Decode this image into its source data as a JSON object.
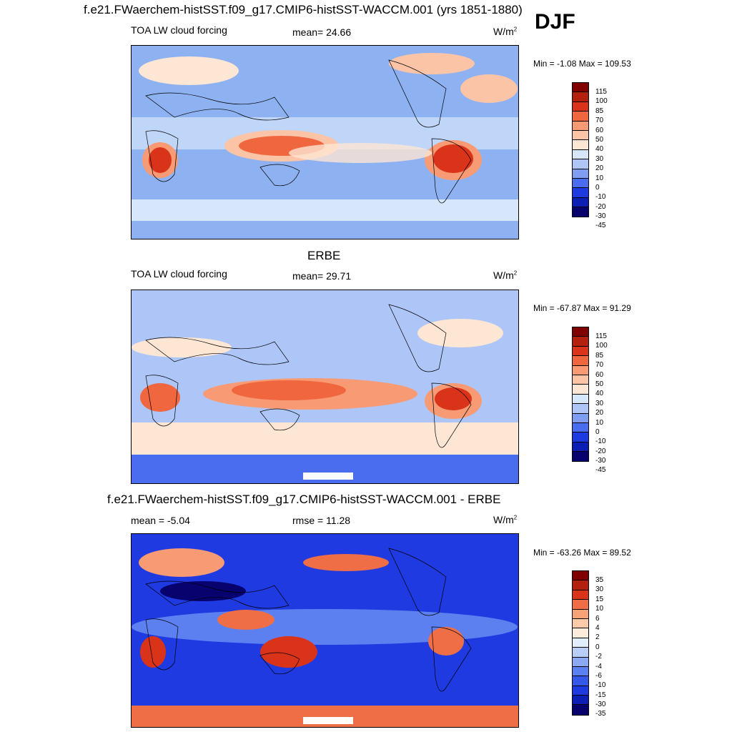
{
  "header": {
    "title": "f.e21.FWaerchem-histSST.f09_g17.CMIP6-histSST-WACCM.001 (yrs 1851-1880)",
    "season": "DJF"
  },
  "colors": {
    "main": [
      "#08026f",
      "#0b1fb5",
      "#1e3ae0",
      "#4a6df0",
      "#7f9ef2",
      "#aec6f7",
      "#d6e6fb",
      "#fde6d3",
      "#fcc4a7",
      "#f89a74",
      "#f0663f",
      "#d9341a",
      "#b3200e",
      "#800000"
    ],
    "diff": [
      "#08026f",
      "#0b1fb5",
      "#1e3ae0",
      "#3558ea",
      "#5d80f0",
      "#8ba9f3",
      "#b8cdf7",
      "#e3eefc",
      "#fdebdc",
      "#fccaa9",
      "#f8a277",
      "#f06e45",
      "#d9341a",
      "#b3200e",
      "#800000"
    ]
  },
  "panels": [
    {
      "title": "",
      "left_label": "TOA LW cloud forcing",
      "center_label": "mean=  24.66",
      "units": "W/m",
      "units_sup": "2",
      "minmax": "Min =  -1.08 Max = 109.53",
      "levels": [
        "115",
        "100",
        "85",
        "70",
        "60",
        "50",
        "40",
        "30",
        "20",
        "10",
        "0",
        "-10",
        "-20",
        "-30",
        "-45"
      ]
    },
    {
      "title": "ERBE",
      "left_label": "TOA LW cloud forcing",
      "center_label": "mean=  29.71",
      "units": "W/m",
      "units_sup": "2",
      "minmax": "Min = -67.87 Max =  91.29",
      "levels": [
        "115",
        "100",
        "85",
        "70",
        "60",
        "50",
        "40",
        "30",
        "20",
        "10",
        "0",
        "-10",
        "-20",
        "-30",
        "-45"
      ]
    },
    {
      "title": "f.e21.FWaerchem-histSST.f09_g17.CMIP6-histSST-WACCM.001 - ERBE",
      "left_label": "mean =  -5.04",
      "center_label": "rmse =  11.28",
      "units": "W/m",
      "units_sup": "2",
      "minmax": "Min = -63.26 Max =  89.52",
      "levels": [
        "35",
        "30",
        "15",
        "10",
        "6",
        "4",
        "2",
        "0",
        "-2",
        "-4",
        "-6",
        "-10",
        "-15",
        "-30",
        "-35"
      ]
    }
  ],
  "chart_data": [
    {
      "type": "heatmap",
      "title": "f.e21.FWaerchem-histSST.f09_g17.CMIP6-histSST-WACCM.001 (yrs 1851-1880)",
      "season": "DJF",
      "variable": "TOA LW cloud forcing",
      "units": "W/m2",
      "mean": 24.66,
      "min": -1.08,
      "max": 109.53,
      "contour_levels": [
        -45,
        -30,
        -20,
        -10,
        0,
        10,
        20,
        30,
        40,
        50,
        60,
        70,
        85,
        100,
        115
      ]
    },
    {
      "type": "heatmap",
      "title": "ERBE",
      "variable": "TOA LW cloud forcing",
      "units": "W/m2",
      "mean": 29.71,
      "min": -67.87,
      "max": 91.29,
      "contour_levels": [
        -45,
        -30,
        -20,
        -10,
        0,
        10,
        20,
        30,
        40,
        50,
        60,
        70,
        85,
        100,
        115
      ]
    },
    {
      "type": "heatmap",
      "title": "f.e21.FWaerchem-histSST.f09_g17.CMIP6-histSST-WACCM.001 - ERBE",
      "units": "W/m2",
      "mean": -5.04,
      "rmse": 11.28,
      "min": -63.26,
      "max": 89.52,
      "contour_levels": [
        -35,
        -30,
        -15,
        -10,
        -6,
        -4,
        -2,
        0,
        2,
        4,
        6,
        10,
        15,
        30,
        35
      ]
    }
  ]
}
